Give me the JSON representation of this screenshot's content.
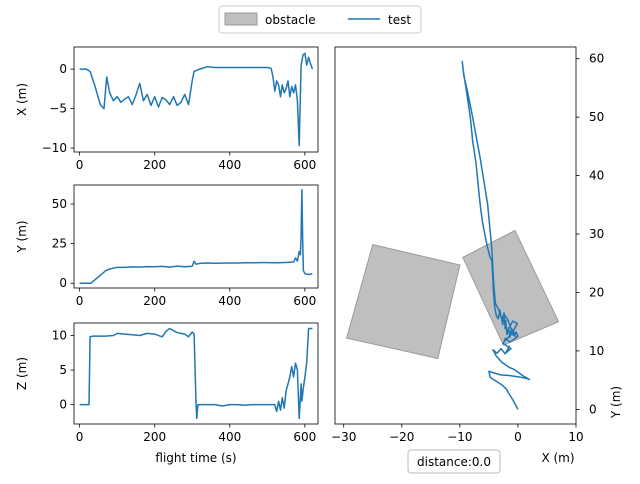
{
  "legend": {
    "items": [
      {
        "label": "obstacle",
        "color": "#bfbfbf",
        "kind": "patch"
      },
      {
        "label": "test",
        "color": "#1f77b4",
        "kind": "line"
      }
    ],
    "placement": "top-center"
  },
  "distance_label": "distance:0.0",
  "chart_data": [
    {
      "type": "line",
      "ylabel": "X (m)",
      "xlabel": "",
      "xlim": [
        -15,
        635
      ],
      "ylim": [
        -10.5,
        2.8
      ],
      "xticks": [
        0,
        200,
        400,
        600
      ],
      "yticks": [
        0,
        -5,
        -10
      ],
      "grid": false,
      "series": [
        {
          "color": "#1f77b4",
          "x": [
            0,
            10,
            18,
            28,
            40,
            55,
            65,
            72,
            80,
            90,
            100,
            110,
            120,
            130,
            140,
            150,
            160,
            170,
            180,
            190,
            200,
            210,
            220,
            230,
            240,
            250,
            260,
            270,
            280,
            290,
            300,
            305,
            310,
            320,
            340,
            360,
            380,
            400,
            420,
            440,
            460,
            480,
            500,
            510,
            515,
            520,
            525,
            530,
            535,
            540,
            545,
            550,
            555,
            560,
            565,
            570,
            575,
            580,
            585,
            590,
            595,
            600,
            605,
            610,
            615,
            620
          ],
          "y": [
            0,
            0,
            0,
            -0.3,
            -2,
            -4.5,
            -5,
            -1,
            -3,
            -4,
            -3.5,
            -4.2,
            -3.8,
            -3.5,
            -4.5,
            -3.3,
            -1.8,
            -4,
            -3.2,
            -4.6,
            -3.5,
            -4.8,
            -3.6,
            -3.9,
            -4.5,
            -3.5,
            -4.6,
            -4.2,
            -3.2,
            -4.5,
            -1.5,
            -0.3,
            -0.2,
            0,
            0.3,
            0.2,
            0.2,
            0.2,
            0.2,
            0.2,
            0.2,
            0.2,
            0.2,
            0.1,
            -1,
            -2.8,
            -1.5,
            -2,
            -3.5,
            -2,
            -3,
            -2.5,
            -1.5,
            -3.5,
            -2.2,
            -3,
            -2,
            -4,
            -9.7,
            0.5,
            1.8,
            2,
            0.5,
            1.5,
            0.7,
            0
          ]
        }
      ]
    },
    {
      "type": "line",
      "ylabel": "Y (m)",
      "xlabel": "",
      "xlim": [
        -15,
        635
      ],
      "ylim": [
        -3,
        62
      ],
      "xticks": [
        0,
        200,
        400,
        600
      ],
      "yticks": [
        0,
        25,
        50
      ],
      "grid": false,
      "series": [
        {
          "color": "#1f77b4",
          "x": [
            0,
            10,
            20,
            30,
            40,
            50,
            60,
            70,
            80,
            90,
            100,
            120,
            140,
            160,
            180,
            200,
            220,
            240,
            260,
            280,
            300,
            305,
            310,
            320,
            340,
            360,
            380,
            400,
            420,
            440,
            460,
            480,
            500,
            520,
            540,
            560,
            570,
            575,
            580,
            585,
            588,
            590,
            592,
            594,
            596,
            600,
            610,
            620
          ],
          "y": [
            0,
            0,
            0,
            0,
            2,
            4,
            6,
            8,
            9,
            9.5,
            10,
            10,
            10.3,
            10.2,
            10.5,
            10.4,
            10.6,
            10.2,
            10.8,
            10.4,
            10.7,
            14,
            12,
            12.5,
            12.8,
            12.6,
            12.7,
            12.8,
            12.8,
            12.9,
            12.9,
            13,
            13,
            12.9,
            13,
            13.2,
            13.5,
            16,
            14,
            20,
            18,
            30,
            59,
            30,
            8,
            6,
            5.5,
            6
          ]
        }
      ]
    },
    {
      "type": "line",
      "ylabel": "Z (m)",
      "xlabel": "flight time (s)",
      "xlim": [
        -15,
        635
      ],
      "ylim": [
        -2.8,
        11.8
      ],
      "xticks": [
        0,
        200,
        400,
        600
      ],
      "yticks": [
        0,
        5,
        10
      ],
      "grid": false,
      "series": [
        {
          "color": "#1f77b4",
          "x": [
            0,
            15,
            20,
            25,
            28,
            35,
            50,
            70,
            90,
            100,
            120,
            140,
            160,
            180,
            200,
            220,
            230,
            240,
            260,
            280,
            290,
            300,
            305,
            310,
            312,
            315,
            320,
            340,
            360,
            380,
            400,
            420,
            440,
            460,
            480,
            500,
            520,
            525,
            530,
            535,
            540,
            545,
            550,
            555,
            560,
            565,
            570,
            575,
            580,
            585,
            590,
            592,
            595,
            600,
            605,
            610,
            615,
            620
          ],
          "y": [
            0,
            0,
            0,
            0,
            9.8,
            9.9,
            9.9,
            9.9,
            10,
            10.3,
            10.2,
            10.1,
            10,
            10.3,
            10.2,
            9.8,
            10.6,
            11,
            10.4,
            10.2,
            9.8,
            10.5,
            10.2,
            0.2,
            -2,
            0,
            0,
            0,
            0,
            -0.2,
            0,
            0,
            -0.1,
            0,
            0,
            0,
            0,
            -1,
            0.5,
            -0.8,
            1,
            -0.5,
            2,
            3,
            4,
            5.5,
            4,
            6,
            5,
            -2,
            3,
            0.5,
            2,
            4,
            6,
            11,
            11,
            11
          ]
        }
      ]
    },
    {
      "type": "line",
      "xlabel": "X (m)",
      "ylabel": "Y (m)",
      "xlim": [
        -31.5,
        10
      ],
      "ylim": [
        -2.5,
        62
      ],
      "xticks": [
        -30,
        -20,
        -10,
        0,
        10
      ],
      "yticks": [
        0,
        10,
        20,
        30,
        40,
        50,
        60
      ],
      "grid": false,
      "obstacles": [
        {
          "label": "obstacle",
          "polygon": [
            [
              -29.5,
              12.2
            ],
            [
              -25,
              28.2
            ],
            [
              -10,
              24.7
            ],
            [
              -13.8,
              8.7
            ]
          ]
        },
        {
          "label": "obstacle",
          "polygon": [
            [
              -9.5,
              26
            ],
            [
              -0.5,
              30.6
            ],
            [
              7,
              15
            ],
            [
              -2.5,
              11
            ]
          ]
        }
      ],
      "series": [
        {
          "name": "test",
          "color": "#1f77b4",
          "x": [
            0,
            -0.8,
            -1.6,
            -2,
            -2.8,
            -4,
            -4.8,
            -5,
            -4,
            -3,
            -1.5,
            0,
            1,
            1.8,
            2,
            0.8,
            -0.6,
            -1.5,
            -2.7,
            -3.8,
            -4.3,
            -3.6,
            -2.9,
            -2.2,
            -1.5,
            -1.9,
            -1.2,
            -2.6,
            -1.7,
            -0.7,
            -0.4,
            -1.1,
            -1.4,
            -0.8,
            -0.1,
            -0.9,
            -1.3,
            -1.9,
            -2.4,
            -2.8,
            -3.2,
            -3.9,
            -4.2,
            -4.5,
            -5.2,
            -6.5,
            -7.8,
            -8.6,
            -9.3,
            -9.6,
            -9.4,
            -8.8,
            -8.2,
            -7.8,
            -7.2,
            -6.8,
            -6.5,
            -6.1,
            -5.7,
            -5.3,
            -4.8,
            -4.5,
            -4.3,
            -4.2,
            -4,
            -3.7,
            -3.4,
            -3.1,
            -2.9,
            -2.6,
            -2.4,
            -2.2,
            -2.1,
            -1.9,
            -1.6,
            -1.4,
            -1.2,
            -0.8,
            -0.3,
            0,
            -0.7,
            -1.4,
            -2.1,
            -2.4
          ],
          "y": [
            0,
            1.5,
            2.8,
            3.5,
            4.2,
            5,
            5.5,
            6.5,
            6.2,
            5.9,
            5.8,
            5.6,
            5.4,
            5.2,
            5.1,
            5.8,
            6.8,
            7.2,
            8,
            9.2,
            10.2,
            9.6,
            10.4,
            9.5,
            10.8,
            9.8,
            10.4,
            11.3,
            12.3,
            13.2,
            12.4,
            13.7,
            14.2,
            13.4,
            14.7,
            15.1,
            14.3,
            15.6,
            16.3,
            15.5,
            16.8,
            18.2,
            22,
            27.5,
            35,
            43,
            50,
            54,
            57,
            59.5,
            58,
            54,
            50,
            46,
            42,
            38,
            35,
            32,
            30,
            28,
            26,
            25.5,
            22,
            20,
            17.5,
            16,
            15.5,
            17,
            15.8,
            14.5,
            16.5,
            13.8,
            15.2,
            12.8,
            14,
            12.3,
            13.5,
            12.7,
            13.2,
            12.5,
            12,
            11.5,
            12.2,
            11.8
          ]
        }
      ]
    }
  ]
}
